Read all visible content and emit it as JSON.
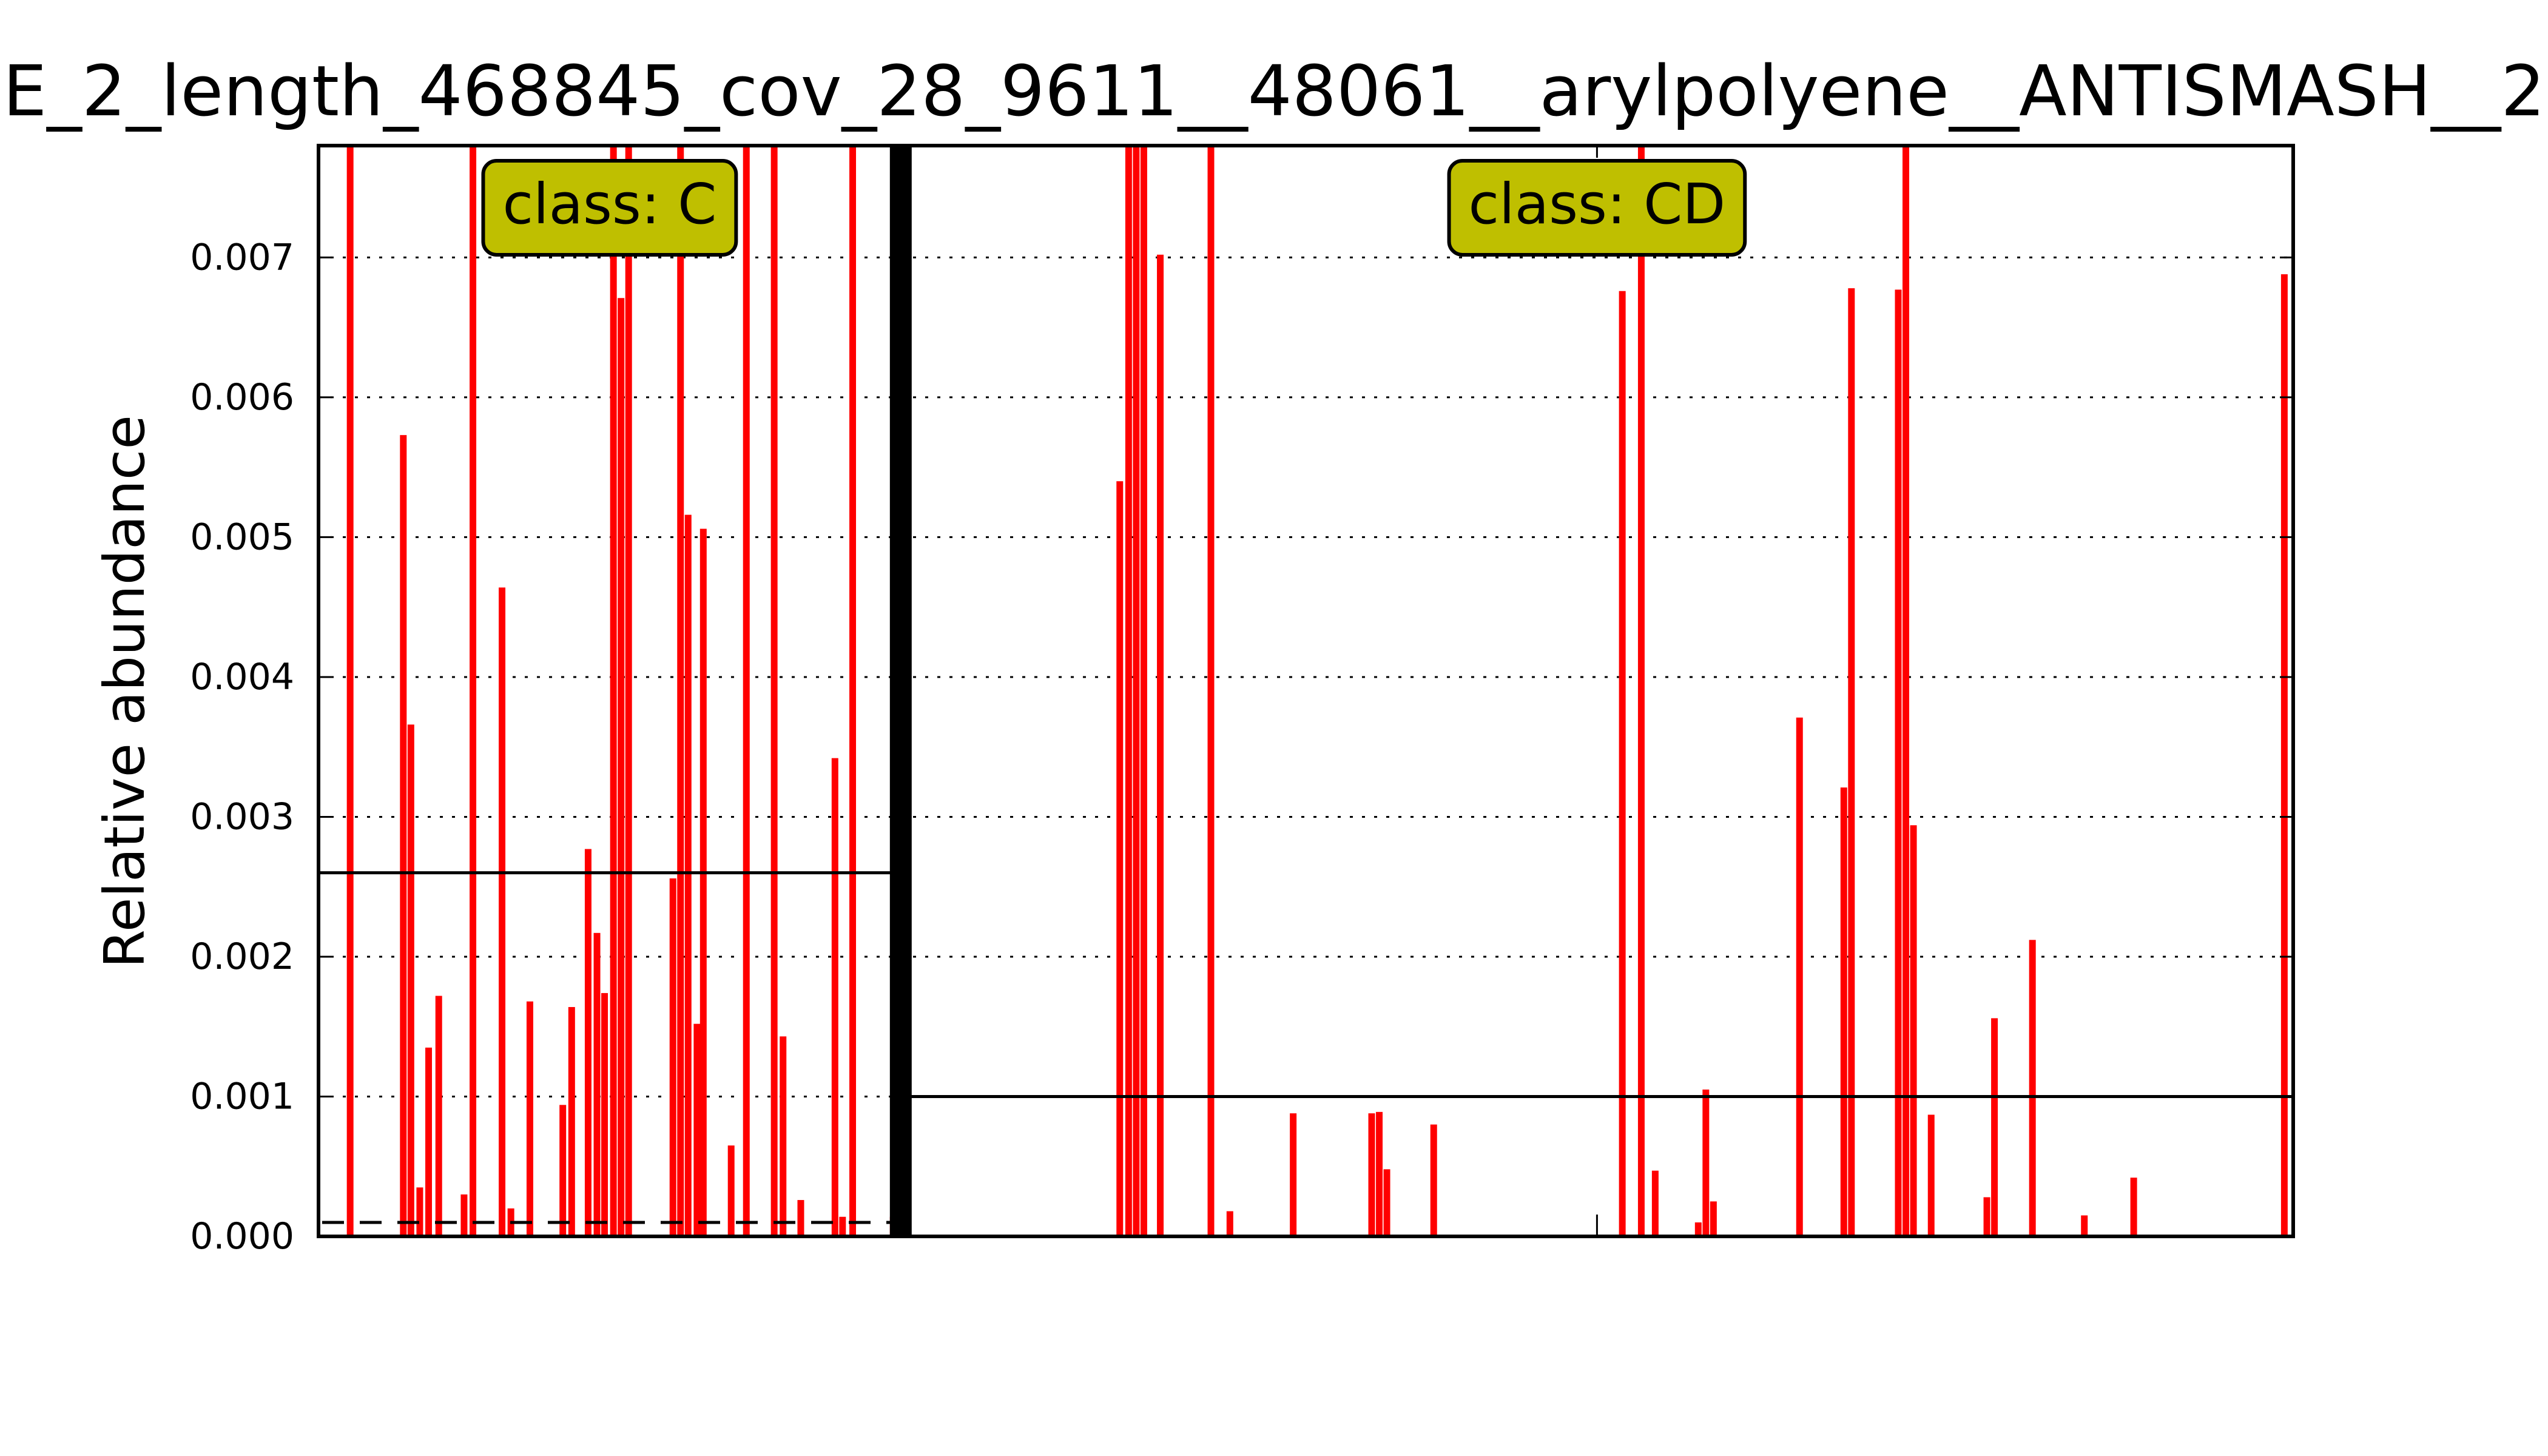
{
  "chart_data": {
    "type": "bar",
    "title": "E_2_length_468845_cov_28_9611__48061__arylpolyene__ANTISMASH__2",
    "xlabel": "",
    "ylabel": "Relative abundance",
    "ylim": [
      0,
      0.0078
    ],
    "yticks": [
      "0.000",
      "0.001",
      "0.002",
      "0.003",
      "0.004",
      "0.005",
      "0.006",
      "0.007"
    ],
    "ytick_values": [
      0,
      0.001,
      0.002,
      0.003,
      0.004,
      0.005,
      0.006,
      0.007
    ],
    "xlim": [
      0,
      156
    ],
    "grid": "y-dotted",
    "bar_color": "#ff0000",
    "class_color": "#bfbf00",
    "separator_x": 46,
    "groups": [
      {
        "label": "class: C",
        "x_range": [
          0,
          46
        ],
        "label_x": 23,
        "mean": 0.0026,
        "dashed_level": 0.0001,
        "bars": [
          {
            "x": 2.5,
            "value": 0.0078
          },
          {
            "x": 6.7,
            "value": 0.00573
          },
          {
            "x": 7.3,
            "value": 0.00366
          },
          {
            "x": 8.0,
            "value": 0.00035
          },
          {
            "x": 8.7,
            "value": 0.00135
          },
          {
            "x": 9.5,
            "value": 0.00172
          },
          {
            "x": 11.5,
            "value": 0.0003
          },
          {
            "x": 12.2,
            "value": 0.0078
          },
          {
            "x": 14.5,
            "value": 0.00464
          },
          {
            "x": 15.2,
            "value": 0.0002
          },
          {
            "x": 16.7,
            "value": 0.00168
          },
          {
            "x": 19.3,
            "value": 0.00094
          },
          {
            "x": 20.0,
            "value": 0.00164
          },
          {
            "x": 21.3,
            "value": 0.00277
          },
          {
            "x": 22.0,
            "value": 0.00217
          },
          {
            "x": 22.6,
            "value": 0.00174
          },
          {
            "x": 23.3,
            "value": 0.0078
          },
          {
            "x": 23.9,
            "value": 0.00671
          },
          {
            "x": 24.5,
            "value": 0.0078
          },
          {
            "x": 28.0,
            "value": 0.00256
          },
          {
            "x": 28.6,
            "value": 0.0078
          },
          {
            "x": 29.2,
            "value": 0.00516
          },
          {
            "x": 29.9,
            "value": 0.00152
          },
          {
            "x": 30.4,
            "value": 0.00506
          },
          {
            "x": 32.6,
            "value": 0.00065
          },
          {
            "x": 33.8,
            "value": 0.0078
          },
          {
            "x": 36.0,
            "value": 0.0078
          },
          {
            "x": 36.7,
            "value": 0.00143
          },
          {
            "x": 38.1,
            "value": 0.00026
          },
          {
            "x": 40.8,
            "value": 0.00342
          },
          {
            "x": 41.4,
            "value": 0.00014
          },
          {
            "x": 42.2,
            "value": 0.0078
          },
          {
            "x": 45.4,
            "value": 0.00014
          }
        ]
      },
      {
        "label": "class: CD",
        "x_range": [
          46,
          156
        ],
        "label_x": 101,
        "mean": 0.001,
        "bars": [
          {
            "x": 63.3,
            "value": 0.0054
          },
          {
            "x": 64.0,
            "value": 0.0078
          },
          {
            "x": 64.6,
            "value": 0.0078
          },
          {
            "x": 65.2,
            "value": 0.0078
          },
          {
            "x": 66.5,
            "value": 0.00702
          },
          {
            "x": 70.5,
            "value": 0.0078
          },
          {
            "x": 72.0,
            "value": 0.00018
          },
          {
            "x": 77.0,
            "value": 0.00088
          },
          {
            "x": 83.2,
            "value": 0.00088
          },
          {
            "x": 83.8,
            "value": 0.00089
          },
          {
            "x": 84.4,
            "value": 0.00048
          },
          {
            "x": 88.1,
            "value": 0.0008
          },
          {
            "x": 103.0,
            "value": 0.00676
          },
          {
            "x": 104.5,
            "value": 0.0078
          },
          {
            "x": 105.6,
            "value": 0.00047
          },
          {
            "x": 109.0,
            "value": 0.0001
          },
          {
            "x": 109.6,
            "value": 0.00105
          },
          {
            "x": 110.2,
            "value": 0.00025
          },
          {
            "x": 117.0,
            "value": 0.00371
          },
          {
            "x": 120.5,
            "value": 0.00321
          },
          {
            "x": 121.1,
            "value": 0.00678
          },
          {
            "x": 124.8,
            "value": 0.00677
          },
          {
            "x": 125.4,
            "value": 0.0078
          },
          {
            "x": 126.0,
            "value": 0.00294
          },
          {
            "x": 127.4,
            "value": 0.00087
          },
          {
            "x": 131.8,
            "value": 0.00028
          },
          {
            "x": 132.4,
            "value": 0.00156
          },
          {
            "x": 135.4,
            "value": 0.00212
          },
          {
            "x": 139.5,
            "value": 0.00015
          },
          {
            "x": 143.4,
            "value": 0.00042
          },
          {
            "x": 155.3,
            "value": 0.00688
          }
        ]
      }
    ]
  }
}
